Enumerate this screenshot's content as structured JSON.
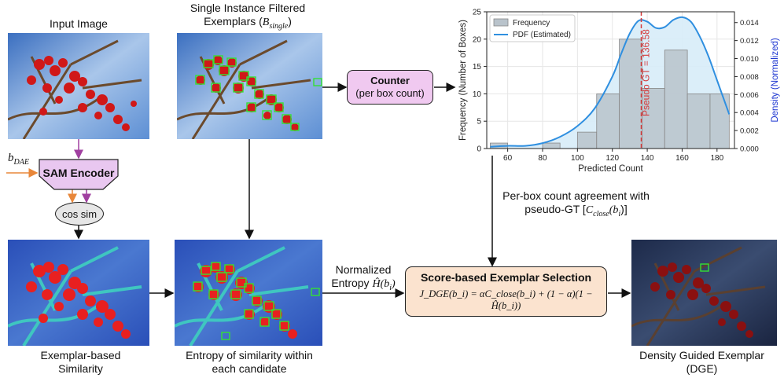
{
  "labels": {
    "input_image": "Input Image",
    "single_instance_line1": "Single Instance Filtered",
    "single_instance_line2": "Exemplars (",
    "single_instance_math": "B",
    "single_instance_sub": "single",
    "single_instance_close": ")",
    "exemplar_sim_line1": "Exemplar-based",
    "exemplar_sim_line2": "Similarity",
    "entropy_line1": "Entropy of similarity within",
    "entropy_line2": "each candidate",
    "dge_line1": "Density Guided Exemplar",
    "dge_line2": "(DGE)",
    "b_dae": "b",
    "b_dae_sub": "DAE",
    "sam_encoder": "SAM Encoder",
    "cos_sim": "cos sim",
    "counter_title": "Counter",
    "counter_sub": "(per box count)",
    "normalized_line1": "Normalized",
    "normalized_line2": "Entropy",
    "normalized_math": "Ĥ(b",
    "normalized_math_sub": "i",
    "normalized_math_close": ")",
    "perbox_line1": "Per-box count agreement with",
    "perbox_line2": "pseudo-GT [",
    "perbox_math": "C",
    "perbox_sub": "close",
    "perbox_math2": "(b",
    "perbox_sub2": "i",
    "perbox_close": ")]",
    "score_title": "Score-based Exemplar Selection",
    "score_formula": "J_DGE(b_i) = αC_close(b_i) + (1 − α)(1 − Ĥ(b_i))"
  },
  "colors": {
    "sam_fill": "#e9c7f0",
    "counter_fill": "#f0c9f0",
    "score_fill": "#fbe3cf",
    "arrow_orange": "#e8873a",
    "arrow_purple": "#a040a0",
    "bar": "#b9c3cb",
    "pdf_line": "#2f8fe0",
    "pdf_fill": "#d7ecf8",
    "pseudo_gt": "#d63a3a",
    "box_green": "#34e034"
  },
  "chart_data": {
    "type": "bar",
    "xlabel": "Predicted Count",
    "ylabel": "Frequency (Number of Boxes)",
    "ylabel_right": "Density (Normalized)",
    "xlim": [
      48,
      190
    ],
    "ylim": [
      0,
      25
    ],
    "ylim_right": [
      0,
      0.0152
    ],
    "xticks": [
      60,
      80,
      100,
      120,
      140,
      160,
      180
    ],
    "yticks": [
      0,
      5,
      10,
      15,
      20,
      25
    ],
    "yticks_right": [
      "0.000",
      "0.002",
      "0.004",
      "0.006",
      "0.008",
      "0.010",
      "0.012",
      "0.014"
    ],
    "bins": [
      {
        "x0": 50,
        "x1": 60,
        "value": 1
      },
      {
        "x0": 80,
        "x1": 90,
        "value": 1
      },
      {
        "x0": 90,
        "x1": 100,
        "value": 0
      },
      {
        "x0": 100,
        "x1": 111,
        "value": 3
      },
      {
        "x0": 111,
        "x1": 124,
        "value": 10
      },
      {
        "x0": 124,
        "x1": 137,
        "value": 20
      },
      {
        "x0": 137,
        "x1": 150,
        "value": 11
      },
      {
        "x0": 150,
        "x1": 163,
        "value": 18
      },
      {
        "x0": 163,
        "x1": 176,
        "value": 10
      },
      {
        "x0": 176,
        "x1": 187,
        "value": 10
      }
    ],
    "pdf": {
      "x": [
        50,
        60,
        70,
        80,
        90,
        100,
        110,
        120,
        125,
        130,
        135,
        140,
        145,
        150,
        155,
        160,
        165,
        170,
        175,
        180,
        187
      ],
      "y": [
        0.0002,
        0.0003,
        0.0003,
        0.0006,
        0.0013,
        0.0025,
        0.0045,
        0.008,
        0.0105,
        0.0128,
        0.0142,
        0.0141,
        0.0134,
        0.0135,
        0.0143,
        0.0146,
        0.0141,
        0.0125,
        0.0103,
        0.0076,
        0.0038
      ]
    },
    "pseudo_gt": 136.58,
    "pseudo_gt_label": "Pseudo GT = 136.58",
    "legend": [
      "Frequency",
      "PDF (Estimated)"
    ],
    "legend_position": "top-left",
    "grid": true
  }
}
